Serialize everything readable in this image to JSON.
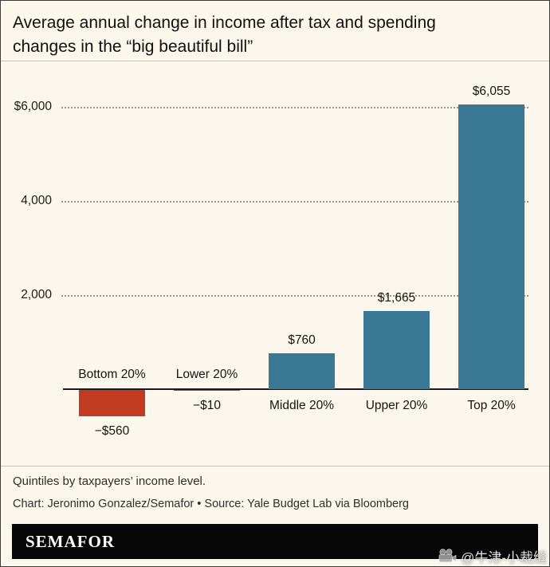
{
  "title_lines": [
    "Average annual change in income after tax and spending",
    "changes in the “big beautiful bill”"
  ],
  "chart_data": {
    "type": "bar",
    "title": "Average annual change in income after tax and spending changes in the “big beautiful bill”",
    "categories": [
      "Bottom 20%",
      "Lower 20%",
      "Middle 20%",
      "Upper 20%",
      "Top 20%"
    ],
    "values": [
      -560,
      -10,
      760,
      1665,
      6055
    ],
    "value_labels": [
      "−$560",
      "−$10",
      "$760",
      "$1,665",
      "$6,055"
    ],
    "xlabel": "Quintiles by taxpayers’ income level",
    "ylabel": "",
    "ylim": [
      -900,
      6600
    ],
    "yticks": [
      2000,
      4000,
      6000
    ],
    "ytick_labels": [
      "2,000",
      "4,000",
      "$6,000"
    ],
    "grid": "horizontal-dotted",
    "legend": "none",
    "colors": {
      "positive": "#3a7896",
      "negative": "#c23a21"
    }
  },
  "footer": {
    "note": "Quintiles by taxpayers’ income level.",
    "credit": "Chart: Jeronimo Gonzalez/Semafor • Source: Yale Budget Lab via Bloomberg",
    "brand": "SEMAFOR"
  },
  "watermark": {
    "icon": "film-camera-icon",
    "text": "@牛津-小裁缝"
  }
}
